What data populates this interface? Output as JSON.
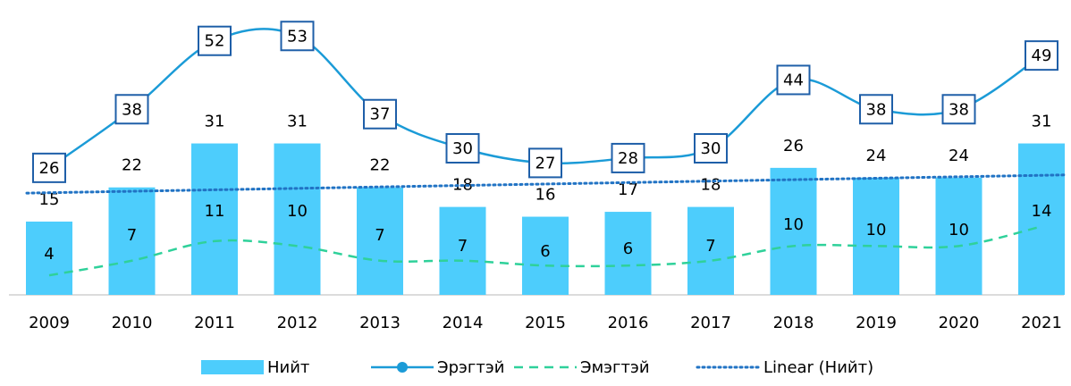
{
  "chart_data": {
    "type": "bar",
    "categories": [
      "2009",
      "2010",
      "2011",
      "2012",
      "2013",
      "2014",
      "2015",
      "2016",
      "2017",
      "2018",
      "2019",
      "2020",
      "2021"
    ],
    "series": [
      {
        "name": "Нийт",
        "type": "bar",
        "color": "#4dcdfc",
        "values": [
          15,
          22,
          31,
          31,
          22,
          18,
          16,
          17,
          18,
          26,
          24,
          24,
          31
        ]
      },
      {
        "name": "Эрэгтэй",
        "type": "line",
        "color": "#1b9bd7",
        "values": [
          26,
          38,
          52,
          53,
          37,
          30,
          27,
          28,
          30,
          44,
          38,
          38,
          49
        ]
      },
      {
        "name": "Эмэгтэй",
        "type": "dashed",
        "color": "#2fd19a",
        "values": [
          4,
          7,
          11,
          10,
          7,
          7,
          6,
          6,
          7,
          10,
          10,
          10,
          14
        ]
      },
      {
        "name": "Linear (Нийт)",
        "type": "trend",
        "color": "#2173c4"
      }
    ],
    "ylim": [
      0,
      60
    ]
  }
}
